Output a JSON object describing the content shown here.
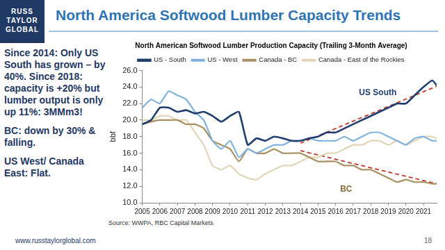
{
  "slide": {
    "title": "North America Softwood Lumber Capacity Trends",
    "logo": [
      "RUSS",
      "TAYLOR",
      "GLOBAL"
    ],
    "notes": [
      "Since 2014: Only US South has grown – by 40%. Since 2018: capacity is +20% but lumber output is only up 11%: 3MMm3!",
      "BC: down by 30% & falling.",
      "US West/ Canada East: Flat."
    ],
    "source": "Source: WWPA, RBC Capital Markets",
    "url": "www.russtaylorglobal.com",
    "page_number": 18
  },
  "chart_data": {
    "type": "line",
    "title": "North American Softwood Lumber Production Capacity (Trailing 3-Month Average)",
    "y_label": "bbf",
    "x": [
      2005,
      2005.5,
      2006,
      2006.5,
      2007,
      2007.5,
      2008,
      2008.5,
      2009,
      2009.5,
      2010,
      2010.5,
      2011,
      2011.5,
      2012,
      2012.5,
      2013,
      2013.5,
      2014,
      2014.5,
      2015,
      2015.5,
      2016,
      2016.5,
      2017,
      2017.5,
      2018,
      2018.5,
      2019,
      2019.5,
      2020,
      2020.5,
      2021,
      2021.5,
      2021.75
    ],
    "series": [
      {
        "name": "US - South",
        "color": "#1f3e6e",
        "values": [
          19.5,
          20.0,
          21.5,
          21.5,
          21.0,
          21.2,
          20.8,
          21.0,
          20.5,
          19.8,
          20.5,
          21.0,
          17.0,
          17.8,
          17.5,
          18.0,
          17.8,
          17.5,
          17.5,
          17.8,
          18.0,
          18.5,
          18.5,
          19.0,
          19.5,
          20.0,
          20.5,
          21.0,
          21.5,
          22.0,
          22.0,
          23.0,
          24.0,
          24.8,
          24.2
        ]
      },
      {
        "name": "US - West",
        "color": "#7fb2dd",
        "values": [
          21.5,
          22.5,
          22.0,
          23.5,
          23.0,
          22.5,
          21.0,
          20.0,
          17.5,
          16.5,
          17.5,
          15.5,
          16.5,
          16.0,
          16.5,
          17.0,
          17.0,
          17.5,
          17.5,
          17.8,
          17.5,
          17.5,
          17.5,
          18.0,
          17.5,
          18.0,
          18.5,
          18.5,
          18.0,
          17.5,
          17.0,
          17.8,
          18.0,
          17.5,
          17.5
        ]
      },
      {
        "name": "Canada - BC",
        "color": "#a89061",
        "values": [
          19.5,
          19.8,
          20.0,
          20.0,
          20.0,
          19.5,
          19.5,
          19.0,
          17.5,
          17.0,
          16.5,
          15.0,
          16.5,
          16.0,
          16.0,
          16.5,
          16.0,
          16.0,
          16.0,
          15.5,
          15.0,
          15.0,
          15.0,
          14.5,
          14.5,
          14.0,
          14.0,
          13.5,
          13.0,
          12.5,
          12.8,
          12.5,
          12.5,
          12.3,
          12.3
        ]
      },
      {
        "name": "Canada - East of the Rockies",
        "color": "#e2d4b7",
        "values": [
          20.0,
          20.0,
          20.5,
          20.5,
          20.0,
          20.0,
          18.5,
          17.0,
          14.5,
          14.0,
          14.5,
          13.5,
          13.0,
          12.8,
          13.5,
          14.0,
          14.5,
          14.5,
          15.0,
          15.5,
          15.5,
          16.0,
          16.0,
          16.5,
          17.0,
          17.0,
          17.5,
          17.5,
          17.0,
          17.5,
          17.0,
          17.5,
          18.0,
          18.0,
          17.8
        ]
      },
      {
        "color": "#c0392b",
        "line_style": "dashed",
        "x": [
          2014,
          2021.75
        ],
        "values": [
          17.2,
          24.1
        ]
      },
      {
        "color": "#c0392b",
        "line_style": "dashed",
        "x": [
          2014,
          2021.75
        ],
        "values": [
          16.3,
          12.3
        ]
      }
    ],
    "annotations": [
      {
        "text": "US South",
        "x": 2018.4,
        "y": 23.3,
        "color": "#1f3e6e"
      },
      {
        "text": "BC",
        "x": 2016.6,
        "y": 11.6,
        "color": "#8a6d3b"
      }
    ],
    "xlim": [
      2005,
      2021.75
    ],
    "xticks": [
      2005,
      2006,
      2007,
      2008,
      2009,
      2010,
      2011,
      2012,
      2013,
      2014,
      2015,
      2016,
      2017,
      2018,
      2019,
      2020,
      2021
    ],
    "ylim": [
      10,
      26
    ],
    "yticks": [
      {
        "value": 10,
        "label": "10.0"
      },
      {
        "value": 12,
        "label": "12.0"
      },
      {
        "value": 14,
        "label": "14.0"
      },
      {
        "value": 16,
        "label": "16.0"
      },
      {
        "value": 18,
        "label": "18.0"
      },
      {
        "value": 20,
        "label": "20.0"
      },
      {
        "value": 22,
        "label": "22.0"
      },
      {
        "value": 24,
        "label": "24.0"
      },
      {
        "value": 26,
        "label": "26.0"
      }
    ],
    "grid": false,
    "legend": "top"
  }
}
